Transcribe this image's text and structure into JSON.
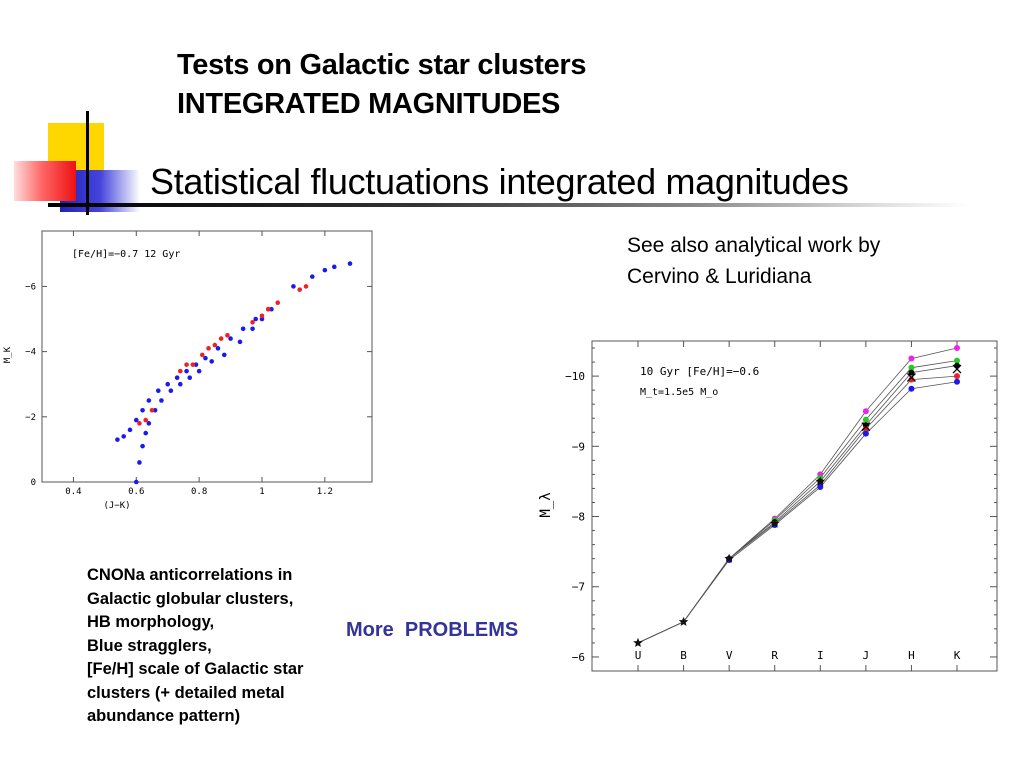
{
  "slide": {
    "title_line1": "Tests on Galactic star clusters",
    "title_line2": "INTEGRATED MAGNITUDES",
    "subtitle": "Statistical fluctuations integrated magnitudes",
    "see_also_line1": "See also analytical work by",
    "see_also_line2": "Cervino & Luridiana",
    "notes": [
      "CNONa anticorrelations in",
      "Galactic globular clusters,",
      "HB morphology,",
      "Blue stragglers,",
      "[Fe/H] scale of Galactic star",
      "clusters (+ detailed metal",
      "abundance pattern)"
    ],
    "more_problems": "More  PROBLEMS"
  },
  "colors": {
    "more_problems": "#333399",
    "deco_yellow": "#ffd700",
    "deco_red": "#ff3333",
    "deco_blue": "#3333cc",
    "series_blue": "#1a1aee",
    "series_red": "#ee2222",
    "series_magenta": "#ee22ee",
    "series_green": "#22cc22",
    "series_black": "#000000"
  },
  "chart_data": [
    {
      "type": "scatter",
      "annotation": "[Fe/H]=−0.7 12 Gyr",
      "xlabel": "(J−K)",
      "ylabel": "M_K",
      "xlim": [
        0.3,
        1.35
      ],
      "ylim": [
        0,
        7.7
      ],
      "y_inverted": true,
      "xticks": [
        "0.4",
        "0.6",
        "0.8",
        "1",
        "1.2"
      ],
      "yticks": [
        "0",
        "−2",
        "−4",
        "−6"
      ],
      "series": [
        {
          "color": "blue",
          "x": [
            0.6,
            0.61,
            0.62,
            0.63,
            0.64,
            0.66,
            0.68,
            0.71,
            0.74,
            0.77,
            0.8,
            0.84,
            0.88,
            0.93,
            0.97,
            1.0,
            1.03,
            0.54,
            0.56,
            0.58,
            0.6,
            0.62,
            0.64,
            0.67,
            0.7,
            0.73,
            0.76,
            0.79,
            0.82,
            0.86,
            0.9,
            0.94,
            0.98,
            1.02,
            1.1,
            1.16,
            1.2,
            1.23,
            1.28
          ],
          "y": [
            0.0,
            0.6,
            1.1,
            1.5,
            1.8,
            2.2,
            2.5,
            2.8,
            3.0,
            3.2,
            3.4,
            3.7,
            3.9,
            4.3,
            4.7,
            5.0,
            5.3,
            1.3,
            1.4,
            1.6,
            1.9,
            2.2,
            2.5,
            2.8,
            3.0,
            3.2,
            3.4,
            3.6,
            3.8,
            4.1,
            4.4,
            4.7,
            5.0,
            5.3,
            6.0,
            6.3,
            6.5,
            6.6,
            6.7
          ]
        },
        {
          "color": "red",
          "x": [
            0.61,
            0.63,
            0.65,
            0.74,
            0.76,
            0.78,
            0.81,
            0.83,
            0.85,
            0.87,
            0.89,
            0.97,
            1.0,
            1.02,
            1.05,
            1.12,
            1.14
          ],
          "y": [
            1.8,
            1.9,
            2.2,
            3.4,
            3.6,
            3.6,
            3.9,
            4.1,
            4.2,
            4.4,
            4.5,
            4.9,
            5.1,
            5.3,
            5.5,
            5.9,
            6.0
          ]
        }
      ]
    },
    {
      "type": "line",
      "annotation_line1": "10 Gyr [Fe/H]=−0.6",
      "annotation_line2": "M_t=1.5e5 M_o",
      "xlabel": "",
      "ylabel": "M_λ",
      "categories": [
        "U",
        "B",
        "V",
        "R",
        "I",
        "J",
        "H",
        "K"
      ],
      "ylim": [
        5.8,
        10.5
      ],
      "y_inverted": true,
      "yticks": [
        "−6",
        "−7",
        "−8",
        "−9",
        "−10"
      ],
      "series": [
        {
          "color": "magenta",
          "values": [
            6.2,
            6.5,
            7.4,
            7.97,
            8.6,
            9.5,
            10.25,
            10.4
          ]
        },
        {
          "color": "green",
          "values": [
            6.2,
            6.5,
            7.4,
            7.95,
            8.55,
            9.38,
            10.12,
            10.22
          ]
        },
        {
          "color": "black",
          "values": [
            6.2,
            6.5,
            7.4,
            7.92,
            8.5,
            9.3,
            10.05,
            10.15
          ]
        },
        {
          "color": "red",
          "values": [
            6.2,
            6.5,
            7.4,
            7.9,
            8.45,
            9.25,
            9.95,
            10.0
          ]
        },
        {
          "color": "blue",
          "values": [
            6.2,
            6.5,
            7.38,
            7.88,
            8.42,
            9.18,
            9.82,
            9.92
          ]
        }
      ],
      "mean_markers": [
        6.2,
        6.5,
        7.4,
        7.9,
        8.5,
        9.28,
        9.98,
        10.1
      ]
    }
  ]
}
